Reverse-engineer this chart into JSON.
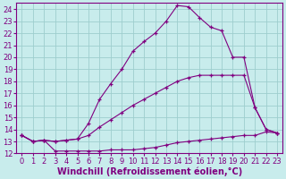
{
  "xlabel": "Windchill (Refroidissement éolien,°C)",
  "background_color": "#c8ecec",
  "line_color": "#800080",
  "xlim": [
    -0.5,
    23.5
  ],
  "ylim": [
    12,
    24.5
  ],
  "yticks": [
    12,
    13,
    14,
    15,
    16,
    17,
    18,
    19,
    20,
    21,
    22,
    23,
    24
  ],
  "xticks": [
    0,
    1,
    2,
    3,
    4,
    5,
    6,
    7,
    8,
    9,
    10,
    11,
    12,
    13,
    14,
    15,
    16,
    17,
    18,
    19,
    20,
    21,
    22,
    23
  ],
  "line1_x": [
    0,
    1,
    2,
    3,
    4,
    5,
    6,
    7,
    8,
    9,
    10,
    11,
    12,
    13,
    14,
    15,
    16,
    17,
    18,
    19,
    20,
    21,
    22,
    23
  ],
  "line1_y": [
    13.5,
    13.0,
    13.1,
    12.2,
    12.2,
    12.2,
    12.2,
    12.2,
    12.3,
    12.3,
    12.3,
    12.4,
    12.5,
    12.7,
    12.9,
    13.0,
    13.1,
    13.2,
    13.3,
    13.4,
    13.5,
    13.5,
    13.8,
    13.7
  ],
  "line2_x": [
    0,
    1,
    2,
    3,
    4,
    5,
    6,
    7,
    8,
    9,
    10,
    11,
    12,
    13,
    14,
    15,
    16,
    17,
    18,
    19,
    20,
    21,
    22,
    23
  ],
  "line2_y": [
    13.5,
    13.0,
    13.1,
    13.0,
    13.1,
    13.2,
    13.5,
    14.2,
    14.8,
    15.4,
    16.0,
    16.5,
    17.0,
    17.5,
    18.0,
    18.3,
    18.5,
    18.5,
    18.5,
    18.5,
    18.5,
    15.8,
    14.0,
    13.7
  ],
  "line3_x": [
    0,
    1,
    2,
    3,
    4,
    5,
    6,
    7,
    8,
    9,
    10,
    11,
    12,
    13,
    14,
    15,
    16,
    17,
    18,
    19,
    20,
    21,
    22,
    23
  ],
  "line3_y": [
    13.5,
    13.0,
    13.1,
    13.0,
    13.1,
    13.2,
    14.5,
    16.5,
    17.8,
    19.0,
    20.5,
    21.3,
    22.0,
    23.0,
    24.3,
    24.2,
    23.3,
    22.5,
    22.2,
    20.0,
    20.0,
    15.8,
    14.0,
    13.7
  ],
  "grid_color": "#9ecece",
  "label_fontsize": 7,
  "tick_fontsize": 6
}
